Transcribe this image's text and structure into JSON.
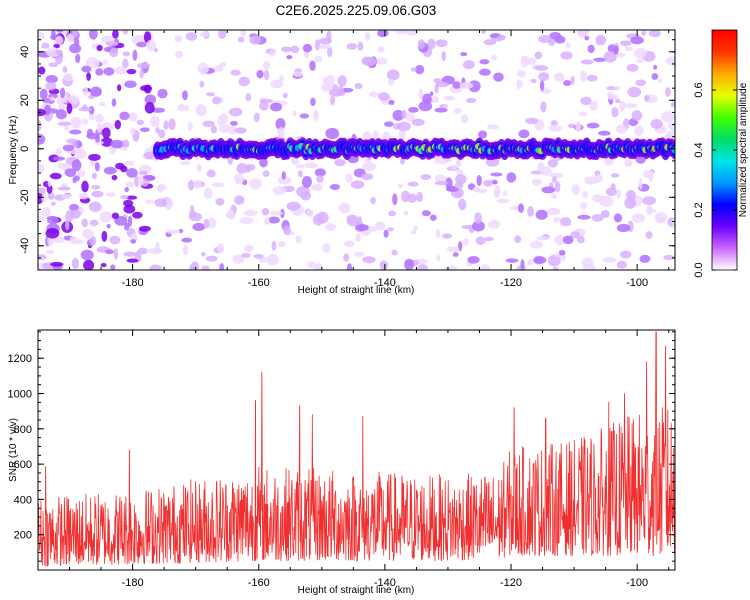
{
  "title": "C2E6.2025.225.09.06.G03",
  "colors": {
    "line": "#f03030",
    "ridge": [
      "#0010ff",
      "#00aaff",
      "#20e0a0",
      "#80f040",
      "#ffe000",
      "#ff8000",
      "#ff1000"
    ],
    "speckle": [
      "#f0d8ff",
      "#d8b0ff",
      "#b070ff",
      "#7a00e8"
    ],
    "colorbar": [
      "#ffffff",
      "#cc66ff",
      "#6a00ff",
      "#0000ff",
      "#0099ff",
      "#00e5e5",
      "#00dd66",
      "#44ff00",
      "#e6ff00",
      "#ffaa00",
      "#ff3300",
      "#ff0000"
    ]
  },
  "chart_data": [
    {
      "type": "heatmap",
      "description_of_ridge": "narrow band of high amplitude centred at 0 Hz for heights from about -176 to -94 km; amplitude grows toward -100 km",
      "xlabel": "Height of straight line (km)",
      "ylabel": "Frequency (Hz)",
      "xlim": [
        -195,
        -94
      ],
      "ylim": [
        -50,
        49
      ],
      "x_ticks": [
        -180,
        -160,
        -140,
        -120,
        -100
      ],
      "y_ticks": [
        -40,
        -20,
        0,
        20,
        40
      ],
      "ridge": {
        "x_start": -176,
        "x_end": -94,
        "frequency": 0,
        "half_width_hz": 4
      },
      "colorbar": {
        "label": "Normalized spectral amplitude",
        "range": [
          0.0,
          0.8
        ],
        "ticks": [
          0.0,
          0.2,
          0.4,
          0.6
        ]
      },
      "grid": false
    },
    {
      "type": "line",
      "xlabel": "Height of straight line (km)",
      "ylabel": "SNR (10 * v/v)",
      "xlim": [
        -195,
        -94
      ],
      "ylim": [
        0,
        1360
      ],
      "x_ticks": [
        -180,
        -160,
        -140,
        -120,
        -100
      ],
      "y_ticks": [
        200,
        400,
        600,
        800,
        1000,
        1200
      ],
      "envelope": [
        {
          "x": -195,
          "low": 20,
          "high": 420
        },
        {
          "x": -180,
          "low": 30,
          "high": 460
        },
        {
          "x": -170,
          "low": 40,
          "high": 520
        },
        {
          "x": -160,
          "low": 50,
          "high": 600
        },
        {
          "x": -150,
          "low": 50,
          "high": 580
        },
        {
          "x": -140,
          "low": 50,
          "high": 560
        },
        {
          "x": -130,
          "low": 50,
          "high": 540
        },
        {
          "x": -122,
          "low": 60,
          "high": 560
        },
        {
          "x": -120,
          "low": 80,
          "high": 700
        },
        {
          "x": -110,
          "low": 80,
          "high": 740
        },
        {
          "x": -100,
          "low": 80,
          "high": 900
        },
        {
          "x": -94,
          "low": 80,
          "high": 950
        }
      ],
      "peaks": [
        {
          "x": -193.8,
          "y": 585
        },
        {
          "x": -180.5,
          "y": 680
        },
        {
          "x": -159.5,
          "y": 1120
        },
        {
          "x": -160.5,
          "y": 960
        },
        {
          "x": -153.5,
          "y": 930
        },
        {
          "x": -143.5,
          "y": 870
        },
        {
          "x": -151.5,
          "y": 880
        },
        {
          "x": -119.5,
          "y": 920
        },
        {
          "x": -114.5,
          "y": 860
        },
        {
          "x": -104.5,
          "y": 950
        },
        {
          "x": -97.0,
          "y": 1350
        },
        {
          "x": -95.5,
          "y": 1270
        },
        {
          "x": -98.5,
          "y": 1180
        },
        {
          "x": -102.0,
          "y": 1000
        }
      ],
      "grid": false
    }
  ]
}
